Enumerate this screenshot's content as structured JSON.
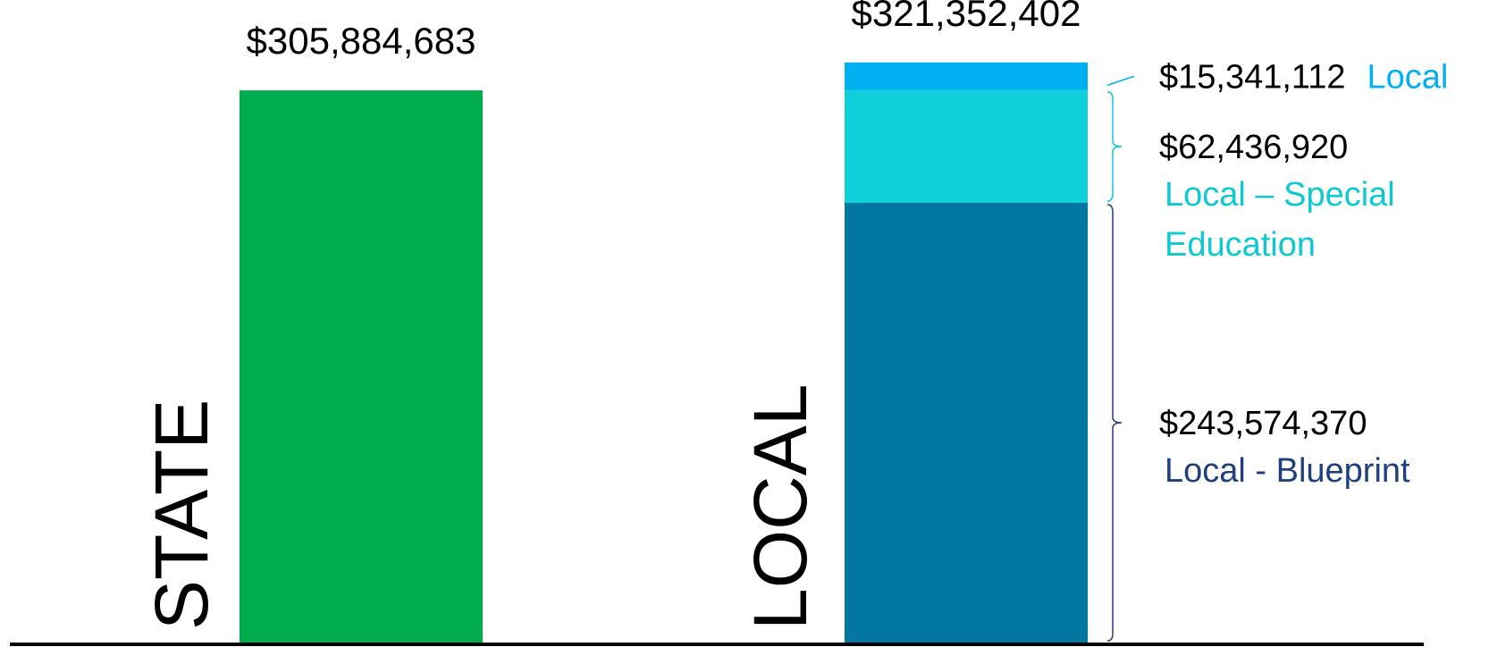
{
  "chart_data": {
    "type": "stacked_bar",
    "categories": [
      "STATE",
      "LOCAL"
    ],
    "totals": [
      305884683,
      321352402
    ],
    "total_labels": [
      "$305,884,683",
      "$321,352,402"
    ],
    "series": [
      {
        "color": "#00ac4d",
        "values": [
          305884683,
          null
        ]
      },
      {
        "name": "Local - Blueprint",
        "color": "#0077a3",
        "label_color": "#1f3f7f",
        "values": [
          null,
          243574370
        ],
        "value_labels": [
          null,
          "$243,574,370"
        ]
      },
      {
        "name": "Local – Special Education",
        "color": "#0ed0d8",
        "label_color": "#0ec8d4",
        "values": [
          null,
          62436920
        ],
        "value_labels": [
          null,
          "$62,436,920"
        ]
      },
      {
        "name": "Local",
        "color": "#00b0f0",
        "label_color": "#00b0f0",
        "values": [
          null,
          15341112
        ],
        "value_labels": [
          null,
          "$15,341,112"
        ]
      }
    ]
  }
}
